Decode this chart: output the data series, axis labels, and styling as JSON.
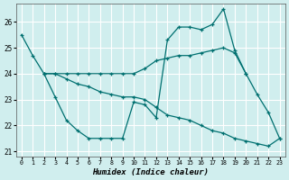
{
  "xlabel": "Humidex (Indice chaleur)",
  "bg_color": "#d0eeee",
  "grid_color": "#ffffff",
  "line_color": "#007070",
  "ylim": [
    20.8,
    26.7
  ],
  "xlim": [
    -0.5,
    23.5
  ],
  "yticks": [
    21,
    22,
    23,
    24,
    25,
    26
  ],
  "xticks": [
    0,
    1,
    2,
    3,
    4,
    5,
    6,
    7,
    8,
    9,
    10,
    11,
    12,
    13,
    14,
    15,
    16,
    17,
    18,
    19,
    20,
    21,
    22,
    23
  ],
  "series1_x": [
    0,
    1,
    2,
    3,
    4,
    5,
    6,
    7,
    8,
    9,
    10,
    11,
    12,
    13,
    14,
    15,
    16,
    17,
    18,
    19,
    20,
    21,
    22,
    23
  ],
  "series1_y": [
    25.5,
    24.7,
    24.0,
    23.1,
    22.2,
    21.8,
    21.5,
    21.5,
    21.5,
    21.5,
    22.9,
    22.8,
    22.3,
    25.3,
    25.8,
    25.8,
    25.7,
    25.9,
    26.5,
    24.9,
    24.0,
    23.2,
    22.5,
    21.5
  ],
  "series2_x": [
    2,
    3,
    4,
    5,
    6,
    7,
    8,
    9,
    10,
    11,
    12,
    13,
    14,
    15,
    16,
    17,
    18,
    19,
    20,
    21,
    22,
    23
  ],
  "series2_y": [
    24.0,
    24.0,
    23.8,
    23.6,
    23.5,
    23.3,
    23.2,
    23.1,
    23.1,
    23.0,
    22.7,
    22.4,
    22.3,
    22.2,
    22.0,
    21.8,
    21.7,
    21.5,
    21.4,
    21.3,
    21.2,
    21.5
  ],
  "series3_x": [
    2,
    3,
    4,
    5,
    6,
    7,
    8,
    9,
    10,
    11,
    12,
    13,
    14,
    15,
    16,
    17,
    18,
    19,
    20
  ],
  "series3_y": [
    24.0,
    24.0,
    24.0,
    24.0,
    24.0,
    24.0,
    24.0,
    24.0,
    24.0,
    24.2,
    24.5,
    24.6,
    24.7,
    24.7,
    24.8,
    24.9,
    25.0,
    24.8,
    24.0
  ]
}
